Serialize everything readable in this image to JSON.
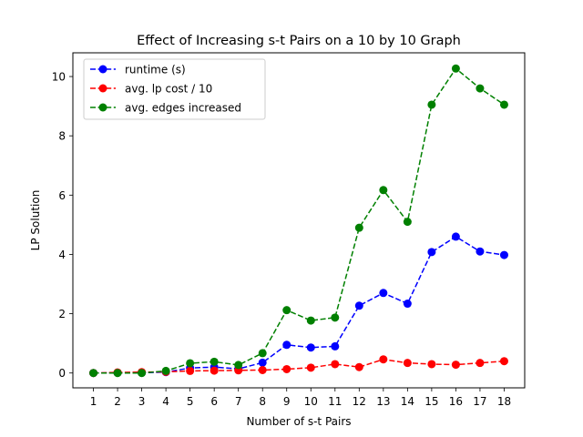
{
  "chart_data": {
    "type": "line",
    "title": "Effect of Increasing s-t Pairs on a 10 by 10 Graph",
    "xlabel": "Number of s-t Pairs",
    "ylabel": "LP Solution",
    "x": [
      1,
      2,
      3,
      4,
      5,
      6,
      7,
      8,
      9,
      10,
      11,
      12,
      13,
      14,
      15,
      16,
      17,
      18
    ],
    "xticks": [
      "1",
      "2",
      "3",
      "4",
      "5",
      "6",
      "7",
      "8",
      "9",
      "10",
      "11",
      "12",
      "13",
      "14",
      "15",
      "16",
      "17",
      "18"
    ],
    "yticks": [
      0,
      2,
      4,
      6,
      8,
      10
    ],
    "xlim": [
      0.15,
      18.85
    ],
    "ylim": [
      -0.5,
      10.8
    ],
    "grid": false,
    "legend_position": "upper-left",
    "series": [
      {
        "name": "runtime (s)",
        "color": "#0000ff",
        "linestyle": "dashed",
        "marker": "circle",
        "values": [
          0.0,
          0.01,
          0.01,
          0.03,
          0.17,
          0.2,
          0.14,
          0.35,
          0.95,
          0.86,
          0.9,
          2.27,
          2.7,
          2.34,
          4.08,
          4.6,
          4.1,
          3.98
        ]
      },
      {
        "name": "avg. lp cost / 10",
        "color": "#ff0000",
        "linestyle": "dashed",
        "marker": "circle",
        "values": [
          0.0,
          0.02,
          0.03,
          0.04,
          0.07,
          0.08,
          0.09,
          0.1,
          0.13,
          0.18,
          0.3,
          0.2,
          0.46,
          0.34,
          0.3,
          0.28,
          0.34,
          0.4
        ]
      },
      {
        "name": "avg. edges increased",
        "color": "#008000",
        "linestyle": "dashed",
        "marker": "circle",
        "values": [
          0.0,
          0.0,
          0.0,
          0.07,
          0.33,
          0.38,
          0.27,
          0.67,
          2.12,
          1.77,
          1.87,
          4.9,
          6.17,
          5.1,
          9.05,
          10.27,
          9.6,
          9.05
        ]
      }
    ]
  }
}
